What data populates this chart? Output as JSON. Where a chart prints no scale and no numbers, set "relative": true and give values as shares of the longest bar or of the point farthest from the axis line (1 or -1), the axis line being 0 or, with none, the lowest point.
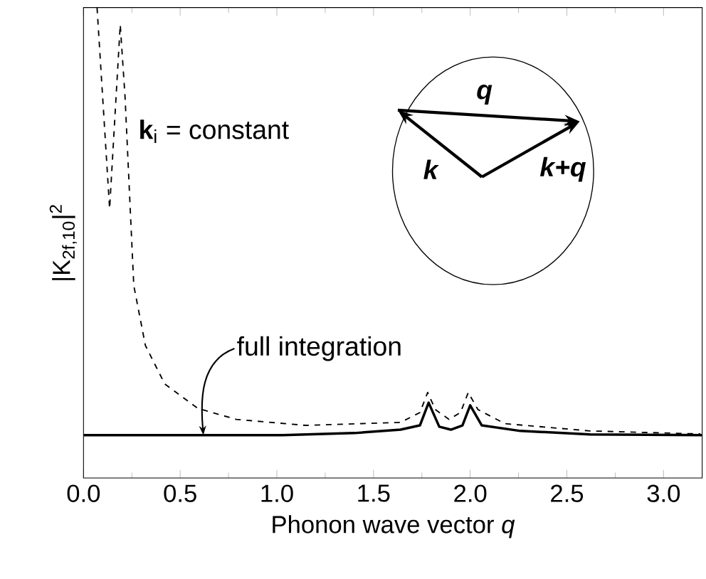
{
  "chart_data": {
    "type": "line",
    "relative": true,
    "xlabel": "Phonon wave vector *q*",
    "ylabel": "|K$_{2f,10}$|$^{2}$",
    "xlim": [
      0,
      3.2
    ],
    "xticks": [
      {
        "value": 0,
        "label": "0.0"
      },
      {
        "value": 0.5,
        "label": "0.5"
      },
      {
        "value": 1,
        "label": "1.0"
      },
      {
        "value": 1.5,
        "label": "1.5"
      },
      {
        "value": 2,
        "label": "2.0"
      },
      {
        "value": 2.5,
        "label": "2.5"
      },
      {
        "value": 3,
        "label": "3.0"
      }
    ],
    "legend": false,
    "grid": false,
    "marker": "none",
    "series": [
      {
        "color": "#000000",
        "line_style": "solid",
        "x": [
          0,
          0.6,
          1.03,
          1.4,
          1.64,
          1.74,
          1.785,
          1.84,
          1.9,
          1.96,
          2.0,
          2.06,
          2.26,
          2.62,
          3.2
        ],
        "values": [
          0,
          0,
          0,
          0.005,
          0.013,
          0.023,
          0.076,
          0.02,
          0.013,
          0.023,
          0.07,
          0.023,
          0.01,
          0.002,
          0
        ]
      },
      {
        "name": "**k**$_{i}$ = constant",
        "color": "#000000",
        "line_style": "dashed",
        "x": [
          0.07,
          0.135,
          0.19,
          0.215,
          0.26,
          0.32,
          0.42,
          0.59,
          0.79,
          1.15,
          1.64,
          1.74,
          1.78,
          1.82,
          1.89,
          1.95,
          1.99,
          2.04,
          2.18,
          2.62,
          3.19
        ],
        "values": [
          1.0,
          0.53,
          0.96,
          0.79,
          0.35,
          0.21,
          0.12,
          0.063,
          0.037,
          0.023,
          0.03,
          0.053,
          0.1,
          0.06,
          0.037,
          0.053,
          0.1,
          0.06,
          0.027,
          0.01,
          0.003
        ]
      }
    ],
    "annotations": [
      {
        "text": "full integration",
        "x": 0.62,
        "y": 0
      },
      "**q**",
      "**k**",
      "**k+q**"
    ]
  }
}
